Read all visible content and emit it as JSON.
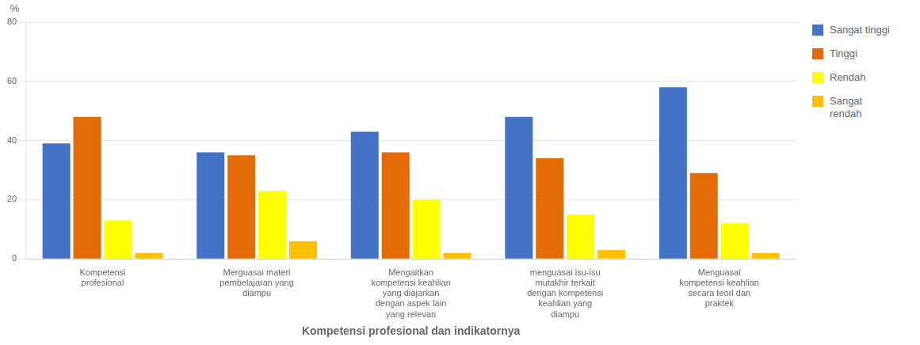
{
  "chart_data": {
    "type": "bar",
    "categories": [
      "Kompetensi\nprofesional",
      "Merguasai materi\npembelajaran yang\ndiampu",
      "Mengaitkan\nkompetensi keahlian\nyang diajarkan\ndengan aspek lain\nyang relevan",
      "menguasai isu-isu\nmutakhir terkait\ndengan kompetensi\nkeahlian yang\ndiampu",
      "Menguasai\nkompetensi keahlian\nsecara teori dan\npraktek"
    ],
    "series": [
      {
        "name": "Sangat tinggi",
        "color": "#4472C4",
        "values": [
          39,
          36,
          43,
          48,
          58
        ]
      },
      {
        "name": "Tinggi",
        "color": "#E36C09",
        "values": [
          48,
          35,
          36,
          34,
          29
        ]
      },
      {
        "name": "Rendah",
        "color": "#FFFF00",
        "values": [
          13,
          23,
          20,
          15,
          12
        ]
      },
      {
        "name": "Sangat\nrendah",
        "color": "#FFC000",
        "values": [
          2,
          6,
          2,
          3,
          2
        ]
      }
    ],
    "xlabel": "Kompetensi profesional dan indikatornya",
    "ylabel": "%",
    "ylim": [
      0,
      80
    ],
    "yticks": [
      0,
      20,
      40,
      60,
      80
    ],
    "grid": true,
    "legend": "right"
  }
}
